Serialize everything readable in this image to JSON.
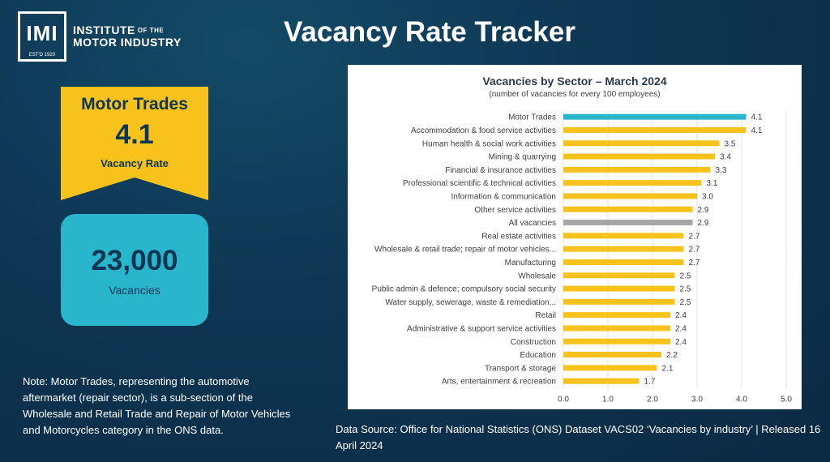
{
  "header": {
    "logo_letters": "IMI",
    "logo_est": "EST'D 1920",
    "logo_line1": "INSTITUTE",
    "logo_line1_small": "OF THE",
    "logo_line2": "MOTOR INDUSTRY",
    "title": "Vacancy Rate Tracker"
  },
  "highlight": {
    "sector": "Motor Trades",
    "rate": "4.1",
    "rate_label": "Vacancy Rate",
    "vacancies": "23,000",
    "vacancies_label": "Vacancies"
  },
  "note": "Note: Motor Trades, representing the automotive aftermarket (repair sector), is a sub-section of the Wholesale and Retail Trade and Repair of Motor Vehicles and Motorcycles category in the ONS data.",
  "source": "Data Source: Office for National Statistics (ONS) Dataset VACS02 ‘Vacancies by industry’ | Released 16 April 2024",
  "colors": {
    "background": "#0e3552",
    "yellow": "#f8c21c",
    "cyan": "#29b6cc",
    "grey": "#a6a6a6",
    "text_dark": "#0e3552"
  },
  "chart_data": {
    "type": "bar",
    "orientation": "horizontal",
    "title": "Vacancies by Sector – March 2024",
    "subtitle": "(number of vacancies for every 100 employees)",
    "xlim": [
      0,
      5
    ],
    "xticks": [
      "0.0",
      "1.0",
      "2.0",
      "3.0",
      "4.0",
      "5.0"
    ],
    "grid": true,
    "categories": [
      "Motor Trades",
      "Accommodation & food service activities",
      "Human health & social work activities",
      "Mining & quarrying",
      "Financial & insurance activities",
      "Professional scientific & technical activities",
      "Information & communication",
      "Other service activities",
      "All vacancies",
      "Real estate activities",
      "Wholesale & retail trade; repair of motor vehicles...",
      "Manufacturing",
      "Wholesale",
      "Public admin & defence; compulsory social security",
      "Water supply, sewerage, waste & remediation...",
      "Retail",
      "Administrative & support service activities",
      "Construction",
      "Education",
      "Transport & storage",
      "Arts, entertainment & recreation"
    ],
    "values": [
      4.1,
      4.1,
      3.5,
      3.4,
      3.3,
      3.1,
      3.0,
      2.9,
      2.9,
      2.7,
      2.7,
      2.7,
      2.5,
      2.5,
      2.5,
      2.4,
      2.4,
      2.4,
      2.2,
      2.1,
      1.7
    ],
    "value_labels": [
      "4.1",
      "4.1",
      "3.5",
      "3.4",
      "3.3",
      "3.1",
      "3.0",
      "2.9",
      "2.9",
      "2.7",
      "2.7",
      "2.7",
      "2.5",
      "2.5",
      "2.5",
      "2.4",
      "2.4",
      "2.4",
      "2.2",
      "2.1",
      "1.7"
    ],
    "bar_colors": [
      "#29b6cc",
      "#f8c21c",
      "#f8c21c",
      "#f8c21c",
      "#f8c21c",
      "#f8c21c",
      "#f8c21c",
      "#f8c21c",
      "#a6a6a6",
      "#f8c21c",
      "#f8c21c",
      "#f8c21c",
      "#f8c21c",
      "#f8c21c",
      "#f8c21c",
      "#f8c21c",
      "#f8c21c",
      "#f8c21c",
      "#f8c21c",
      "#f8c21c",
      "#f8c21c"
    ]
  }
}
